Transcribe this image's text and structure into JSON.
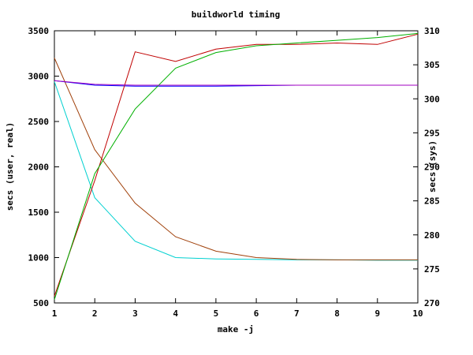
{
  "chart_data": {
    "type": "line",
    "title": "buildworld timing",
    "xlabel": "make -j",
    "ylabel": "secs (user, real)",
    "y2label": "secs (sys)",
    "x": [
      1,
      2,
      3,
      4,
      5,
      6,
      7,
      8,
      9,
      10
    ],
    "xlim": [
      1,
      10
    ],
    "ylim": [
      500,
      3500
    ],
    "y2lim": [
      270,
      310
    ],
    "xticks": [
      1,
      2,
      3,
      4,
      5,
      6,
      7,
      8,
      9,
      10
    ],
    "yticks": [
      500,
      1000,
      1500,
      2000,
      2500,
      3000,
      3500
    ],
    "y2ticks": [
      270,
      275,
      280,
      285,
      290,
      295,
      300,
      305,
      310
    ],
    "grid": false,
    "legend": "none",
    "series": [
      {
        "axis": "left",
        "color": "#00d0d0",
        "values": [
          2940,
          1660,
          1180,
          1000,
          985,
          980,
          975,
          975,
          970,
          970
        ]
      },
      {
        "axis": "left",
        "color": "#a0400a",
        "values": [
          3200,
          2190,
          1600,
          1230,
          1070,
          1000,
          980,
          975,
          975,
          975
        ]
      },
      {
        "axis": "left",
        "color": "#0000ff",
        "values": [
          2950,
          2900,
          2890,
          2890,
          2890,
          2895,
          2900,
          2900,
          2900,
          2900
        ]
      },
      {
        "axis": "right",
        "color": "#c00000",
        "values": [
          271,
          288,
          306.9,
          305.5,
          307.3,
          308,
          308,
          308.2,
          308,
          309.5
        ]
      },
      {
        "axis": "right",
        "color": "#00b000",
        "values": [
          270.5,
          289,
          298.5,
          304.5,
          306.8,
          307.8,
          308.2,
          308.6,
          309,
          309.6
        ]
      },
      {
        "axis": "left",
        "color": "#a000c0",
        "values": [
          2950,
          2910,
          2900,
          2900,
          2900,
          2900,
          2900,
          2900,
          2900,
          2900
        ]
      }
    ]
  }
}
